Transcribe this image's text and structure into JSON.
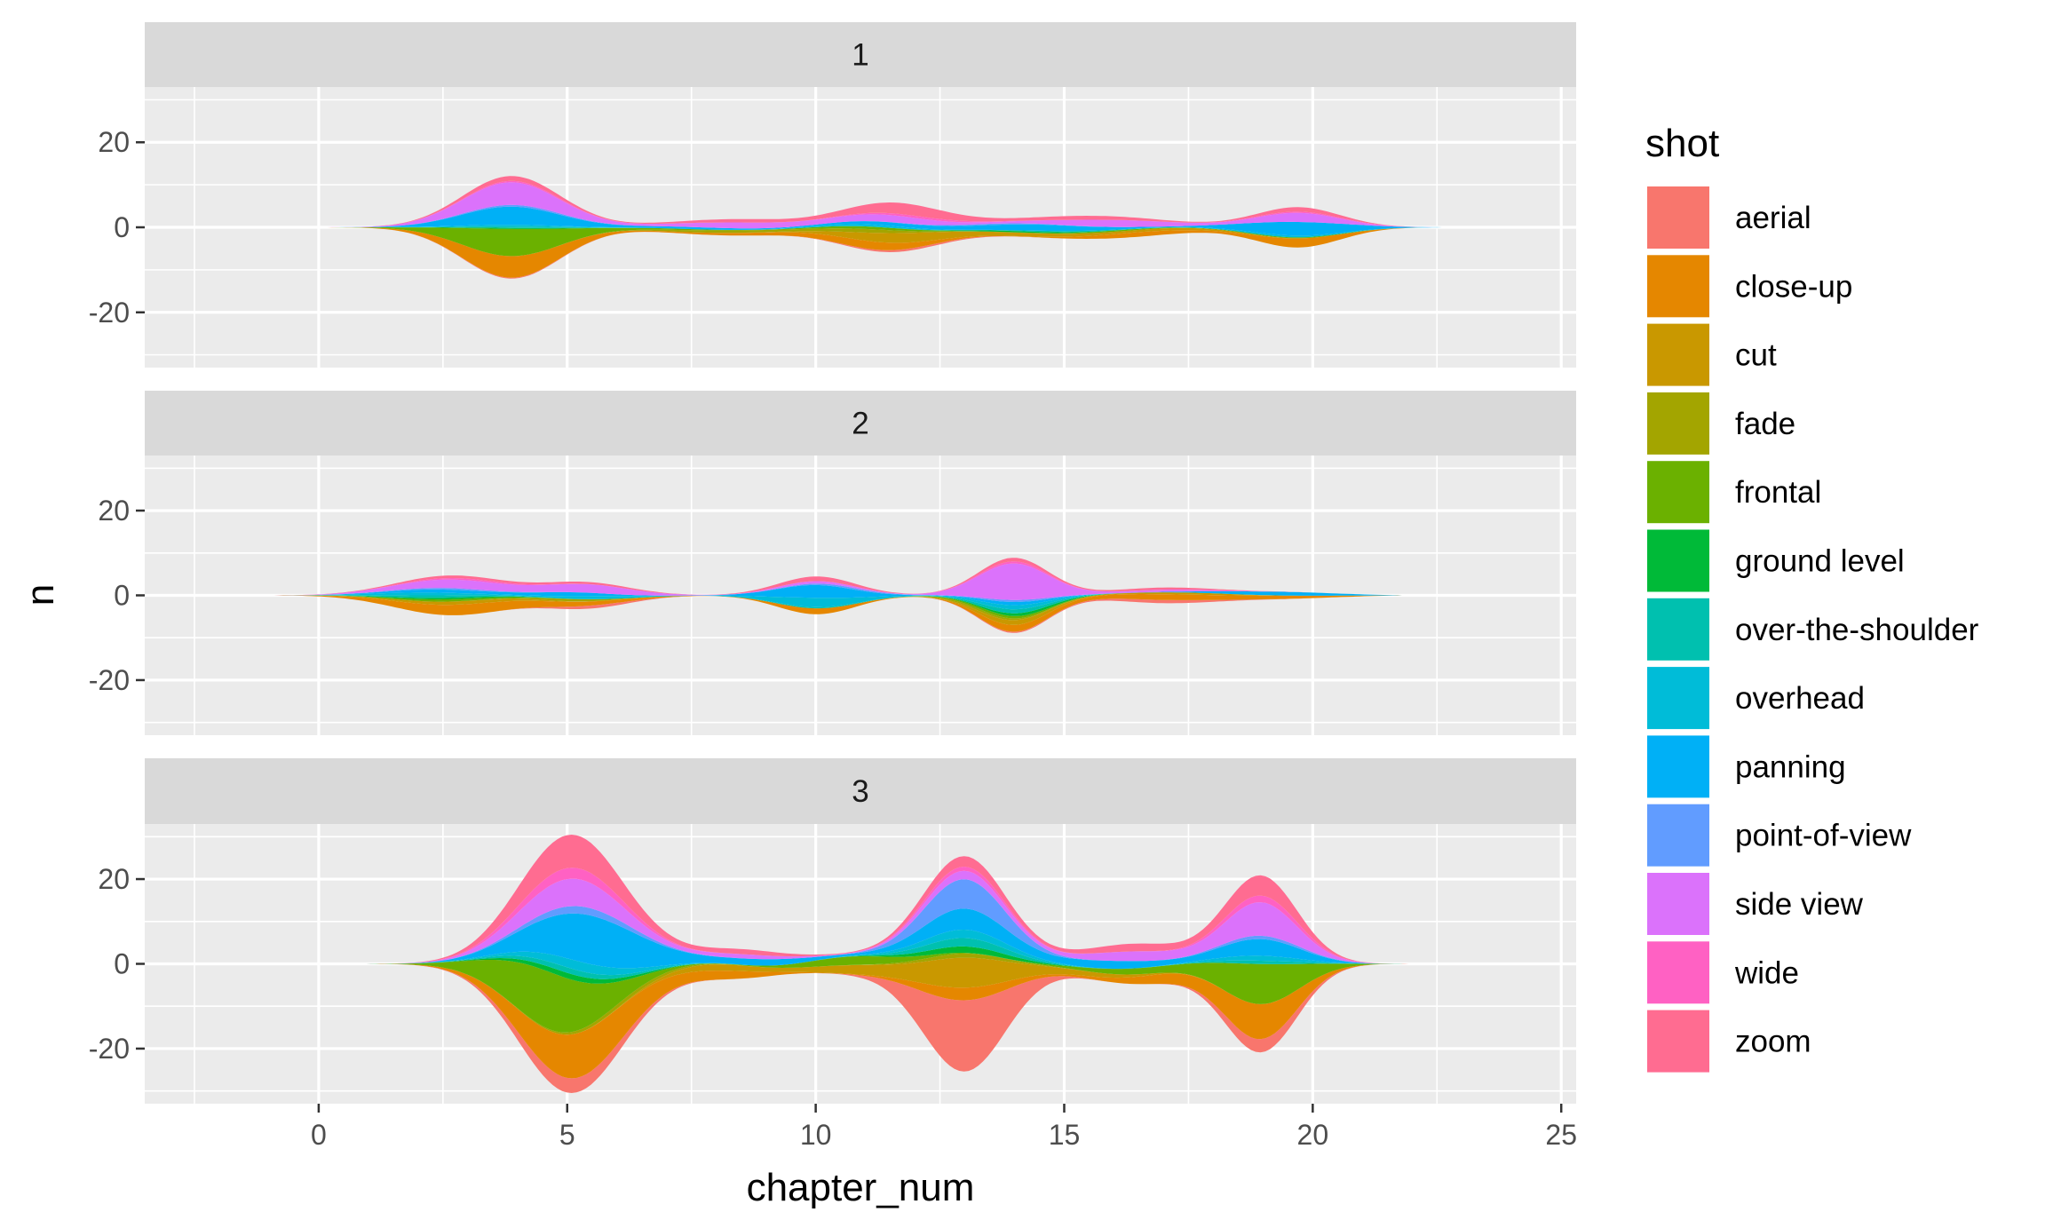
{
  "chart_data": {
    "type": "area",
    "chart_style": "streamgraph (symmetric stacked density), faceted vertically",
    "xlabel": "chapter_num",
    "ylabel": "n",
    "xlim": [
      -3.5,
      25.3
    ],
    "ylim": [
      -33,
      33
    ],
    "x_ticks": [
      0,
      5,
      10,
      15,
      20,
      25
    ],
    "x_tick_labels": [
      "0",
      "5",
      "10",
      "15",
      "20",
      "25"
    ],
    "y_ticks": [
      -20,
      0,
      20
    ],
    "y_tick_labels": [
      "-20",
      "0",
      "20"
    ],
    "grid": true,
    "legend": {
      "title": "shot",
      "position": "right"
    },
    "series": [
      {
        "name": "aerial",
        "color": "#F8766D"
      },
      {
        "name": "close-up",
        "color": "#E58700"
      },
      {
        "name": "cut",
        "color": "#C99800"
      },
      {
        "name": "fade",
        "color": "#A3A500"
      },
      {
        "name": "frontal",
        "color": "#6BB100"
      },
      {
        "name": "ground level",
        "color": "#00BA38"
      },
      {
        "name": "over-the-shoulder",
        "color": "#00C0AF"
      },
      {
        "name": "overhead",
        "color": "#00BCD8"
      },
      {
        "name": "panning",
        "color": "#00B0F6"
      },
      {
        "name": "point-of-view",
        "color": "#619CFF"
      },
      {
        "name": "side view",
        "color": "#DB72FB"
      },
      {
        "name": "wide",
        "color": "#FF61C3"
      },
      {
        "name": "zoom",
        "color": "#FF6C91"
      }
    ],
    "facets": [
      {
        "label": "1",
        "x_range": [
          -0.6,
          22.6
        ],
        "layers": [
          {
            "name": "aerial",
            "bumps": [
              [
                3.8,
                0.25,
                1.0
              ],
              [
                11.8,
                0.5,
                1.0
              ]
            ]
          },
          {
            "name": "close-up",
            "bumps": [
              [
                3.8,
                6.2,
                1.0
              ],
              [
                8.5,
                0.6,
                1.2
              ],
              [
                11.2,
                1.8,
                1.0
              ],
              [
                16.5,
                1.2,
                1.0
              ],
              [
                19.8,
                3.0,
                0.8
              ]
            ]
          },
          {
            "name": "cut",
            "bumps": [
              [
                11.6,
                2.2,
                1.0
              ],
              [
                14.5,
                0.8,
                1.4
              ],
              [
                17.5,
                0.5,
                1.0
              ]
            ]
          },
          {
            "name": "fade",
            "bumps": [
              [
                8.2,
                0.6,
                1.2
              ],
              [
                11.0,
                0.8,
                0.8
              ]
            ]
          },
          {
            "name": "frontal",
            "bumps": [
              [
                3.8,
                7.8,
                1.0
              ],
              [
                7.0,
                0.3,
                0.8
              ],
              [
                11.0,
                0.6,
                1.0
              ],
              [
                16.0,
                0.3,
                1.0
              ],
              [
                19.6,
                0.3,
                1.0
              ]
            ]
          },
          {
            "name": "ground level",
            "bumps": [
              [
                3.8,
                0.3,
                1.0
              ],
              [
                14.0,
                0.3,
                1.0
              ]
            ]
          },
          {
            "name": "over-the-shoulder",
            "bumps": [
              [
                4.0,
                0.4,
                1.0
              ],
              [
                15.0,
                0.3,
                1.0
              ]
            ]
          },
          {
            "name": "overhead",
            "bumps": [
              [
                3.8,
                0.5,
                1.0
              ],
              [
                11.0,
                0.5,
                1.0
              ],
              [
                19.5,
                0.6,
                1.0
              ]
            ]
          },
          {
            "name": "panning",
            "bumps": [
              [
                3.8,
                5.2,
                1.0
              ],
              [
                7.5,
                0.5,
                1.2
              ],
              [
                11.5,
                0.8,
                1.0
              ],
              [
                14.5,
                1.5,
                1.2
              ],
              [
                19.8,
                4.5,
                1.0
              ]
            ]
          },
          {
            "name": "point-of-view",
            "bumps": [
              [
                4.0,
                0.5,
                1.0
              ],
              [
                13.5,
                0.3,
                1.0
              ]
            ]
          },
          {
            "name": "side view",
            "bumps": [
              [
                3.8,
                6.5,
                1.0
              ],
              [
                8.5,
                1.4,
                1.2
              ],
              [
                11.5,
                1.6,
                1.0
              ],
              [
                16.0,
                1.8,
                1.2
              ],
              [
                19.8,
                3.0,
                0.8
              ]
            ]
          },
          {
            "name": "wide",
            "bumps": [
              [
                4.0,
                0.4,
                1.0
              ],
              [
                12.0,
                0.5,
                1.0
              ],
              [
                19.8,
                0.4,
                1.0
              ]
            ]
          },
          {
            "name": "zoom",
            "bumps": [
              [
                3.8,
                1.4,
                1.0
              ],
              [
                8.5,
                0.8,
                1.2
              ],
              [
                11.8,
                2.6,
                1.0
              ],
              [
                15.5,
                1.0,
                1.2
              ],
              [
                19.8,
                1.5,
                0.8
              ]
            ]
          }
        ]
      },
      {
        "label": "2",
        "x_range": [
          -0.9,
          21.8
        ],
        "layers": [
          {
            "name": "aerial",
            "bumps": [
              [
                5.5,
                0.8,
                0.7
              ],
              [
                17.0,
                0.9,
                1.0
              ],
              [
                14.0,
                0.3,
                0.7
              ]
            ]
          },
          {
            "name": "close-up",
            "bumps": [
              [
                2.7,
                3.2,
                1.3
              ],
              [
                5.5,
                0.7,
                1.0
              ],
              [
                10.0,
                1.4,
                0.7
              ],
              [
                14.0,
                1.6,
                0.7
              ],
              [
                17.0,
                1.5,
                1.2
              ],
              [
                19.5,
                0.9,
                1.2
              ]
            ]
          },
          {
            "name": "cut",
            "bumps": [
              [
                2.7,
                1.0,
                1.2
              ],
              [
                14.0,
                1.2,
                0.7
              ],
              [
                17.5,
                0.6,
                1.0
              ]
            ]
          },
          {
            "name": "fade",
            "bumps": [
              [
                5.0,
                0.6,
                0.8
              ],
              [
                13.5,
                0.5,
                0.8
              ]
            ]
          },
          {
            "name": "frontal",
            "bumps": [
              [
                2.5,
                0.7,
                1.0
              ],
              [
                13.8,
                0.6,
                0.8
              ]
            ]
          },
          {
            "name": "ground level",
            "bumps": [
              [
                2.5,
                0.5,
                1.0
              ],
              [
                14.2,
                0.7,
                0.7
              ]
            ]
          },
          {
            "name": "over-the-shoulder",
            "bumps": [
              [
                2.2,
                0.8,
                1.0
              ],
              [
                14.0,
                1.0,
                0.7
              ],
              [
                10.0,
                0.3,
                0.7
              ]
            ]
          },
          {
            "name": "overhead",
            "bumps": [
              [
                2.0,
                0.9,
                1.0
              ],
              [
                5.5,
                0.8,
                0.8
              ],
              [
                10.0,
                2.2,
                0.8
              ],
              [
                14.0,
                1.0,
                0.7
              ]
            ]
          },
          {
            "name": "panning",
            "bumps": [
              [
                2.4,
                1.0,
                1.0
              ],
              [
                5.0,
                1.0,
                0.8
              ],
              [
                10.0,
                3.0,
                0.8
              ],
              [
                14.0,
                0.8,
                0.7
              ],
              [
                19.5,
                1.3,
                1.2
              ]
            ]
          },
          {
            "name": "point-of-view",
            "bumps": [
              [
                2.5,
                0.5,
                1.0
              ],
              [
                10.5,
                0.4,
                0.8
              ],
              [
                14.0,
                0.5,
                0.7
              ]
            ]
          },
          {
            "name": "side view",
            "bumps": [
              [
                2.7,
                2.6,
                1.2
              ],
              [
                5.5,
                2.0,
                0.9
              ],
              [
                10.0,
                0.6,
                0.8
              ],
              [
                14.0,
                9.0,
                0.7
              ],
              [
                17.0,
                0.6,
                1.0
              ]
            ]
          },
          {
            "name": "wide",
            "bumps": [
              [
                3.0,
                0.5,
                1.0
              ],
              [
                14.0,
                0.5,
                0.7
              ]
            ]
          },
          {
            "name": "zoom",
            "bumps": [
              [
                2.7,
                0.8,
                1.2
              ],
              [
                5.5,
                0.5,
                0.9
              ],
              [
                10.0,
                1.1,
                0.8
              ],
              [
                14.0,
                0.9,
                0.7
              ],
              [
                17.0,
                0.6,
                1.0
              ]
            ]
          }
        ]
      },
      {
        "label": "3",
        "x_range": [
          -0.3,
          22.8
        ],
        "layers": [
          {
            "name": "aerial",
            "bumps": [
              [
                5.0,
                4.0,
                1.0
              ],
              [
                13.0,
                17.0,
                0.8
              ],
              [
                19.0,
                4.0,
                0.7
              ]
            ]
          },
          {
            "name": "close-up",
            "bumps": [
              [
                5.2,
                12.0,
                1.1
              ],
              [
                8.2,
                1.8,
                0.8
              ],
              [
                13.0,
                3.0,
                0.9
              ],
              [
                17.2,
                2.5,
                1.0
              ],
              [
                19.0,
                10.0,
                0.7
              ]
            ]
          },
          {
            "name": "cut",
            "bumps": [
              [
                8.0,
                1.5,
                0.9
              ],
              [
                10.8,
                1.8,
                0.9
              ],
              [
                13.0,
                7.0,
                0.9
              ],
              [
                15.5,
                1.0,
                1.0
              ]
            ]
          },
          {
            "name": "fade",
            "bumps": [
              [
                6.0,
                1.0,
                1.0
              ],
              [
                13.0,
                1.0,
                0.9
              ]
            ]
          },
          {
            "name": "frontal",
            "bumps": [
              [
                4.6,
                16.0,
                1.0
              ],
              [
                10.8,
                2.0,
                1.0
              ],
              [
                16.5,
                1.5,
                1.0
              ],
              [
                19.0,
                12.0,
                0.8
              ]
            ]
          },
          {
            "name": "ground level",
            "bumps": [
              [
                5.0,
                1.5,
                1.0
              ],
              [
                13.0,
                1.5,
                0.9
              ]
            ]
          },
          {
            "name": "over-the-shoulder",
            "bumps": [
              [
                5.0,
                1.5,
                1.0
              ],
              [
                13.0,
                2.0,
                0.9
              ],
              [
                19.0,
                1.0,
                0.8
              ]
            ]
          },
          {
            "name": "overhead",
            "bumps": [
              [
                5.2,
                2.5,
                1.0
              ],
              [
                13.0,
                2.0,
                0.9
              ],
              [
                19.0,
                1.5,
                0.8
              ]
            ]
          },
          {
            "name": "panning",
            "bumps": [
              [
                5.4,
                13.0,
                1.1
              ],
              [
                9.0,
                1.5,
                0.9
              ],
              [
                13.0,
                5.0,
                0.9
              ],
              [
                16.0,
                2.0,
                1.0
              ],
              [
                19.0,
                5.0,
                0.8
              ]
            ]
          },
          {
            "name": "point-of-view",
            "bumps": [
              [
                5.2,
                2.0,
                1.0
              ],
              [
                13.0,
                7.0,
                0.8
              ],
              [
                19.0,
                1.0,
                0.8
              ]
            ]
          },
          {
            "name": "side view",
            "bumps": [
              [
                5.0,
                7.5,
                1.0
              ],
              [
                8.5,
                1.0,
                0.9
              ],
              [
                13.0,
                2.0,
                0.9
              ],
              [
                16.5,
                2.5,
                1.0
              ],
              [
                19.0,
                10.0,
                0.7
              ]
            ]
          },
          {
            "name": "wide",
            "bumps": [
              [
                5.0,
                3.0,
                1.0
              ],
              [
                13.0,
                1.0,
                0.9
              ],
              [
                19.0,
                2.0,
                0.8
              ]
            ]
          },
          {
            "name": "zoom",
            "bumps": [
              [
                5.0,
                9.0,
                1.0
              ],
              [
                8.5,
                1.2,
                0.9
              ],
              [
                13.0,
                2.5,
                0.9
              ],
              [
                16.5,
                2.0,
                1.0
              ],
              [
                19.0,
                6.0,
                0.7
              ]
            ]
          }
        ]
      }
    ]
  }
}
